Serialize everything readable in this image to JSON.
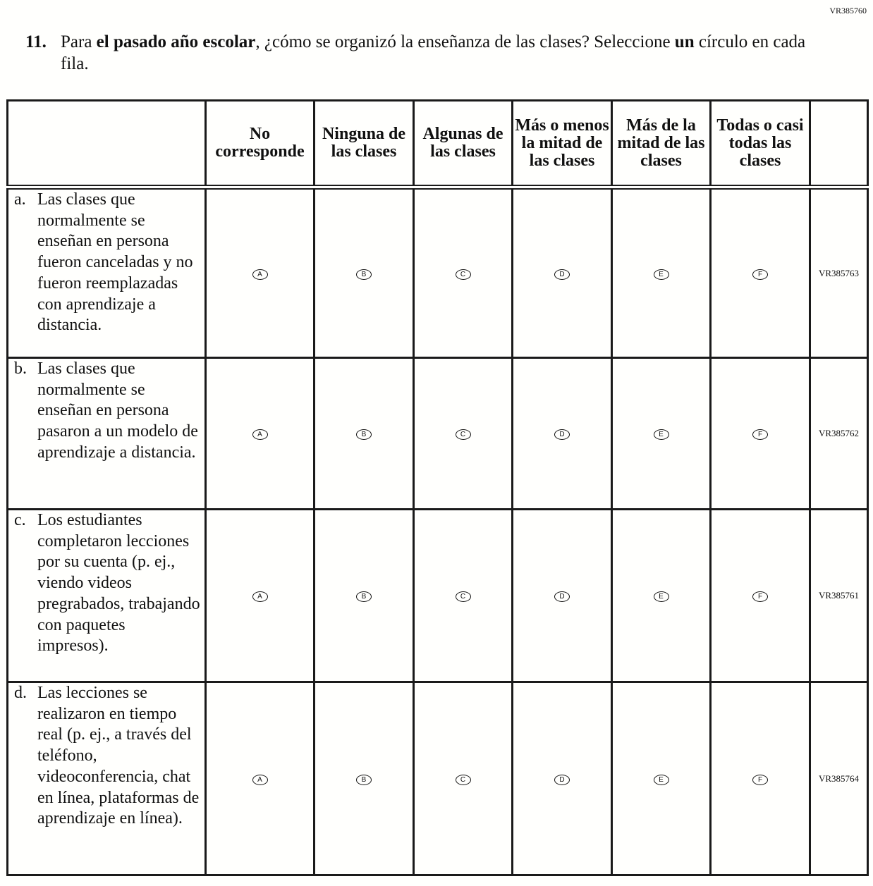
{
  "form_id": "VR385760",
  "question": {
    "number": "11.",
    "text_before": "Para ",
    "text_bold1": "el pasado año escolar",
    "text_middle": ", ¿cómo se organizó la enseñanza de las clases? Seleccione ",
    "text_bold2": "un",
    "text_after": " círculo en cada fila."
  },
  "columns": [
    "No corresponde",
    "Ninguna de las clases",
    "Algunas de las clases",
    "Más o menos la mitad de las clases",
    "Más de la mitad de las clases",
    "Todas o casi todas las clases"
  ],
  "options": [
    "A",
    "B",
    "C",
    "D",
    "E",
    "F"
  ],
  "rows": [
    {
      "label": "a.",
      "text": "Las clases que normalmente se enseñan en persona fueron canceladas y no fueron reemplazadas con aprendizaje a distancia.",
      "id": "VR385763"
    },
    {
      "label": "b.",
      "text": "Las clases que normalmente se enseñan en persona pasaron a un modelo de aprendizaje a distancia.",
      "id": "VR385762"
    },
    {
      "label": "c.",
      "text": "Los estudiantes completaron lecciones por su cuenta (p. ej., viendo videos pregrabados, trabajando con paquetes impresos).",
      "id": "VR385761"
    },
    {
      "label": "d.",
      "text": "Las lecciones se realizaron en tiempo real (p. ej., a través del teléfono, videoconferencia, chat en línea, plataformas de aprendizaje en línea).",
      "id": "VR385764"
    }
  ]
}
